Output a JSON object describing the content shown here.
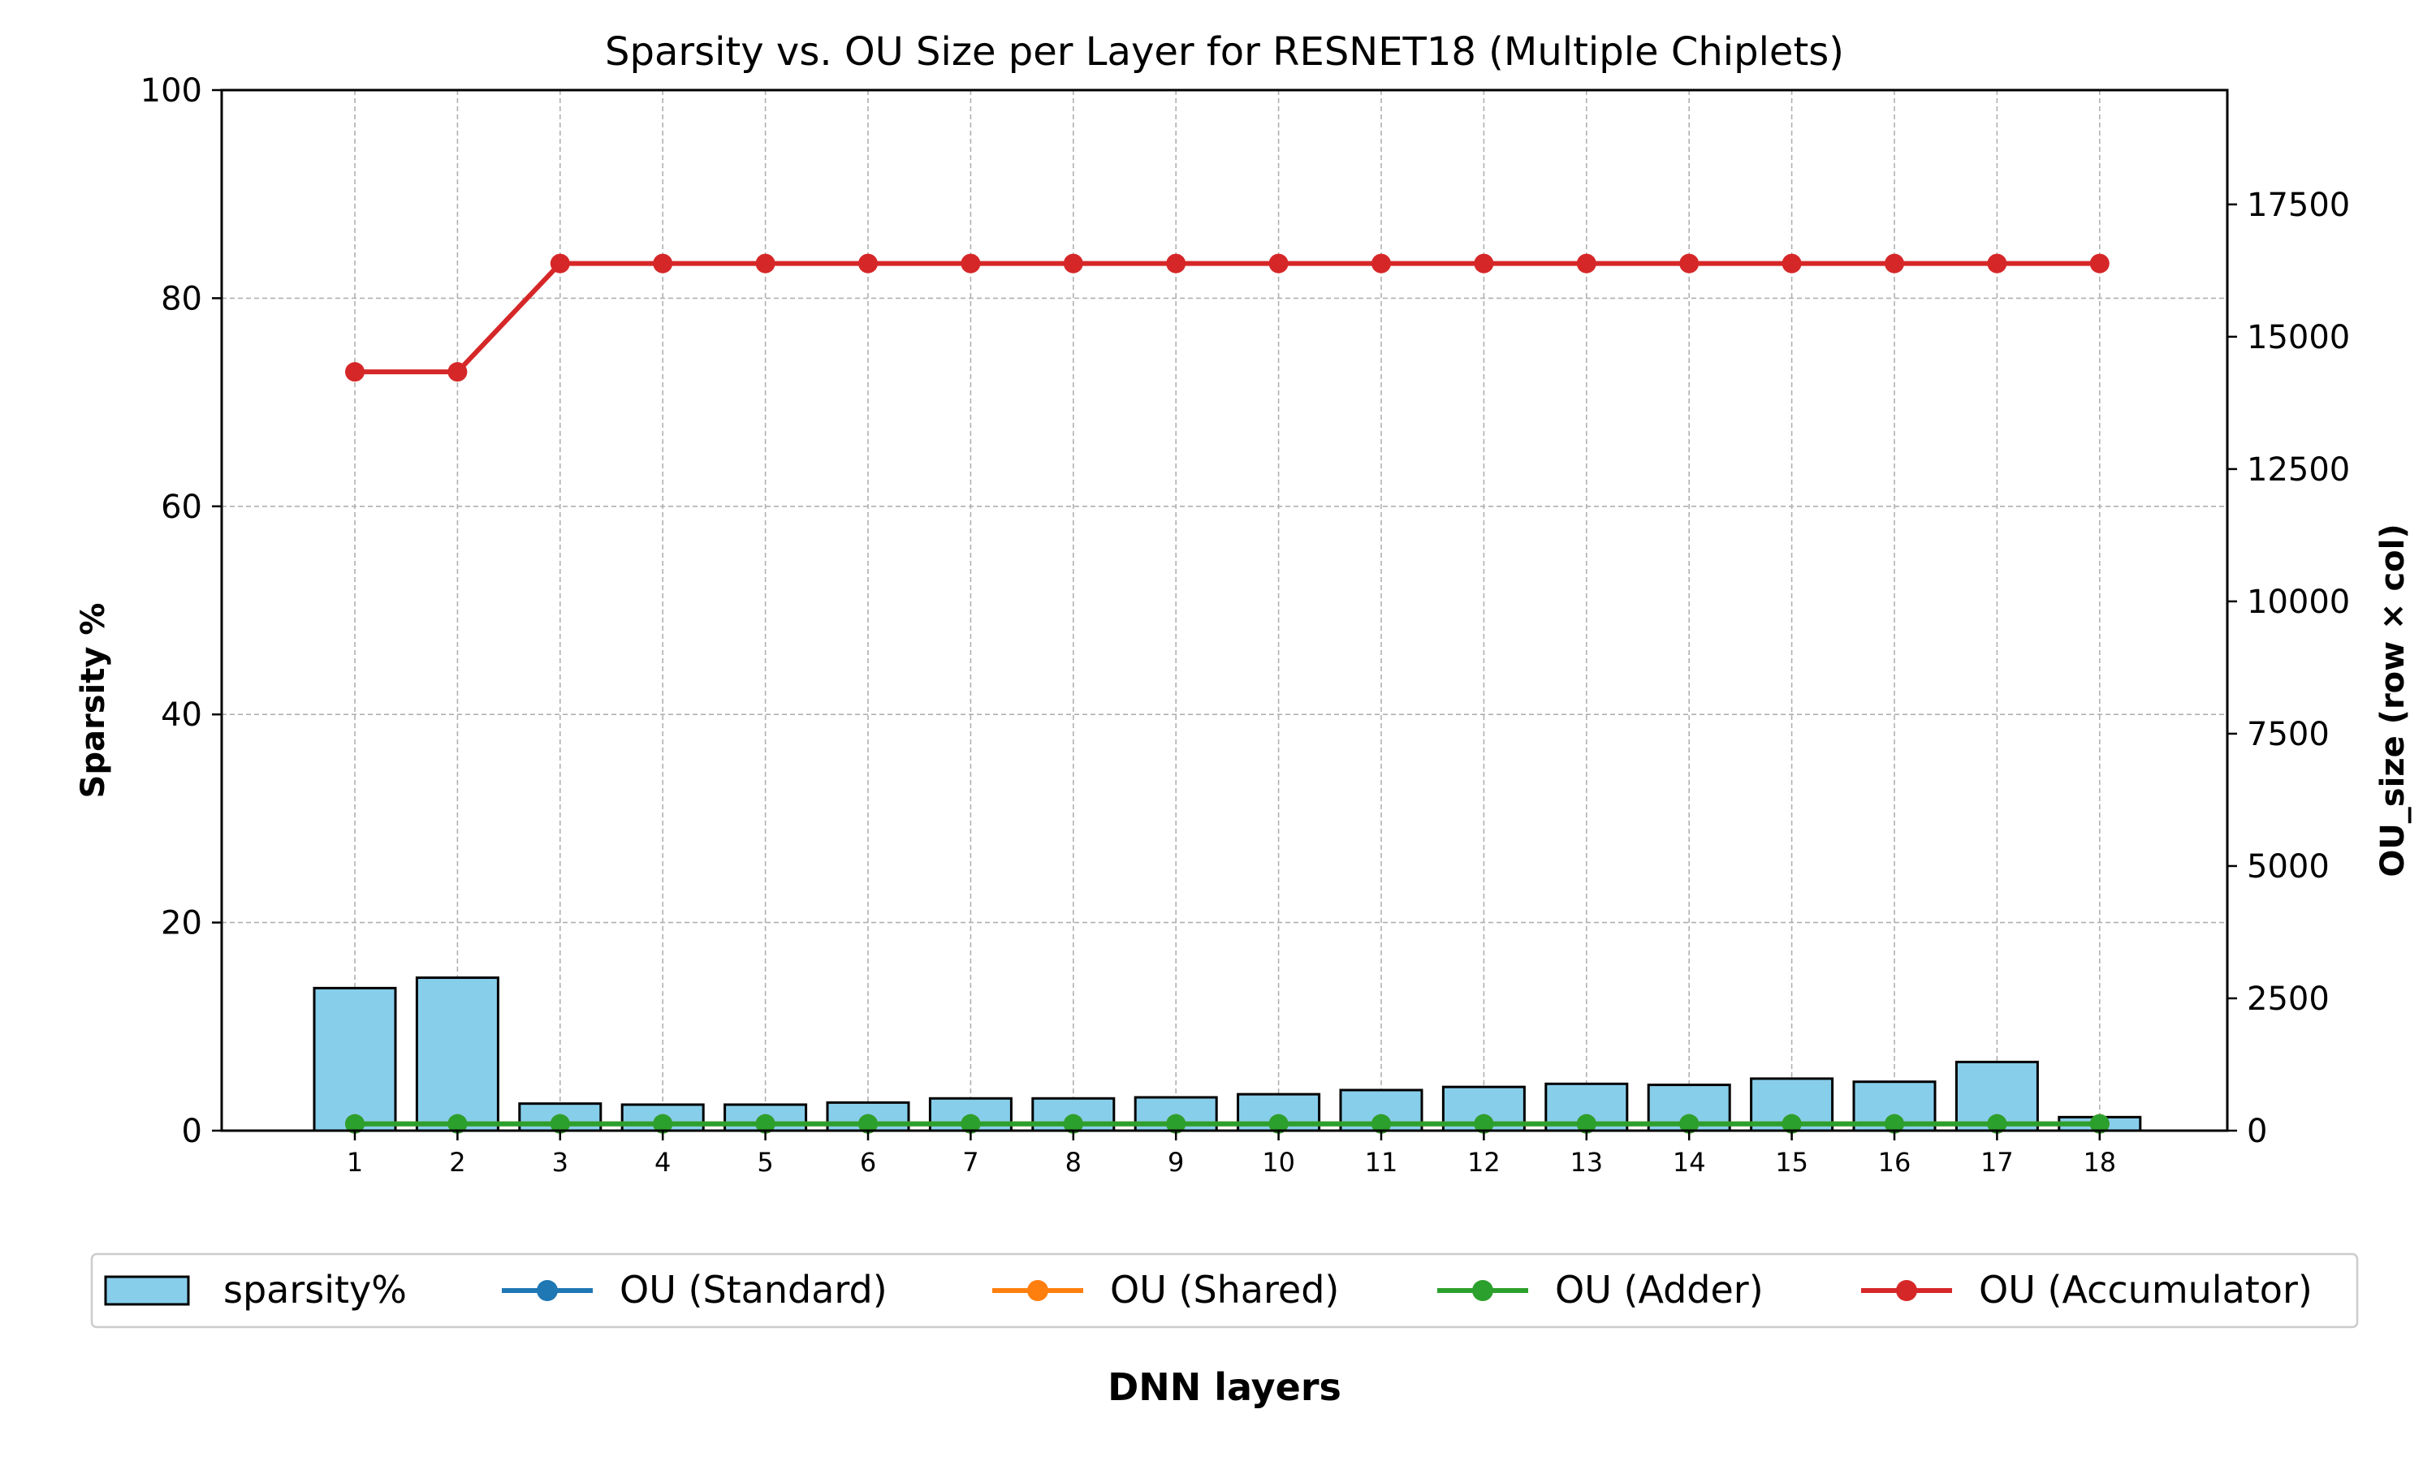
{
  "chart_data": {
    "type": "bar",
    "title": "Sparsity vs. OU Size per Layer for RESNET18 (Multiple Chiplets)",
    "xlabel": "DNN layers",
    "ylabel": "Sparsity %",
    "y2label": "OU_size (row × col)",
    "categories": [
      "1",
      "2",
      "3",
      "4",
      "5",
      "6",
      "7",
      "8",
      "9",
      "10",
      "11",
      "12",
      "13",
      "14",
      "15",
      "16",
      "17",
      "18"
    ],
    "ylim": [
      0,
      100
    ],
    "y2lim": [
      0,
      19660
    ],
    "yticks": [
      0,
      20,
      40,
      60,
      80,
      100
    ],
    "y2ticks": [
      0,
      2500,
      5000,
      7500,
      10000,
      12500,
      15000,
      17500
    ],
    "grid": true,
    "legend_position": "bottom",
    "bar_series": {
      "name": "sparsity%",
      "color": "#87CEEB",
      "values": [
        13.7,
        14.7,
        2.6,
        2.5,
        2.5,
        2.7,
        3.1,
        3.1,
        3.2,
        3.5,
        3.9,
        4.2,
        4.5,
        4.4,
        5.0,
        4.7,
        6.6,
        1.3
      ]
    },
    "series": [
      {
        "name": "OU (Standard)",
        "color": "#1f77b4",
        "values": [
          128,
          128,
          128,
          128,
          128,
          128,
          128,
          128,
          128,
          128,
          128,
          128,
          128,
          128,
          128,
          128,
          128,
          128
        ]
      },
      {
        "name": "OU (Shared)",
        "color": "#ff7f0e",
        "values": [
          128,
          128,
          128,
          128,
          128,
          128,
          128,
          128,
          128,
          128,
          128,
          128,
          128,
          128,
          128,
          128,
          128,
          128
        ]
      },
      {
        "name": "OU (Adder)",
        "color": "#2ca02c",
        "values": [
          128,
          128,
          128,
          128,
          128,
          128,
          128,
          128,
          128,
          128,
          128,
          128,
          128,
          128,
          128,
          128,
          128,
          128
        ]
      },
      {
        "name": "OU (Accumulator)",
        "color": "#d62728",
        "values": [
          14336,
          14336,
          16384,
          16384,
          16384,
          16384,
          16384,
          16384,
          16384,
          16384,
          16384,
          16384,
          16384,
          16384,
          16384,
          16384,
          16384,
          16384
        ]
      }
    ]
  }
}
